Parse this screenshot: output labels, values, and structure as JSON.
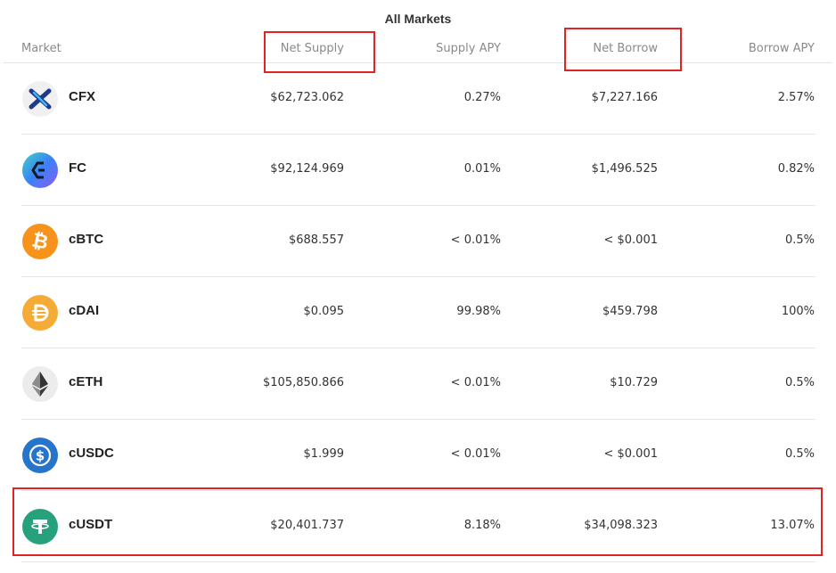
{
  "title": "All Markets",
  "headers": {
    "market": "Market",
    "net_supply": "Net Supply",
    "supply_apy": "Supply APY",
    "net_borrow": "Net Borrow",
    "borrow_apy": "Borrow APY"
  },
  "rows": [
    {
      "name": "CFX",
      "net_supply": "$62,723.062",
      "supply_apy": "0.27%",
      "net_borrow": "$7,227.166",
      "borrow_apy": "2.57%",
      "icon": "cfx-icon"
    },
    {
      "name": "FC",
      "net_supply": "$92,124.969",
      "supply_apy": "0.01%",
      "net_borrow": "$1,496.525",
      "borrow_apy": "0.82%",
      "icon": "fc-icon"
    },
    {
      "name": "cBTC",
      "net_supply": "$688.557",
      "supply_apy": "< 0.01%",
      "net_borrow": "< $0.001",
      "borrow_apy": "0.5%",
      "icon": "bitcoin-icon"
    },
    {
      "name": "cDAI",
      "net_supply": "$0.095",
      "supply_apy": "99.98%",
      "net_borrow": "$459.798",
      "borrow_apy": "100%",
      "icon": "dai-icon"
    },
    {
      "name": "cETH",
      "net_supply": "$105,850.866",
      "supply_apy": "< 0.01%",
      "net_borrow": "$10.729",
      "borrow_apy": "0.5%",
      "icon": "ethereum-icon"
    },
    {
      "name": "cUSDC",
      "net_supply": "$1.999",
      "supply_apy": "< 0.01%",
      "net_borrow": "< $0.001",
      "borrow_apy": "0.5%",
      "icon": "usdc-icon"
    },
    {
      "name": "cUSDT",
      "net_supply": "$20,401.737",
      "supply_apy": "8.18%",
      "net_borrow": "$34,098.323",
      "borrow_apy": "13.07%",
      "icon": "tether-icon"
    }
  ],
  "colors": {
    "highlight": "#e02424",
    "btc": "#f7931a",
    "dai": "#f5ac37",
    "usdc": "#2775ca",
    "usdt": "#26a17b"
  }
}
